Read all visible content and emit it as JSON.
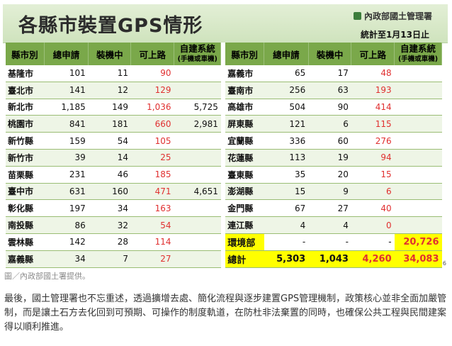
{
  "title": "各縣市裝置GPS情形",
  "agency": "內政部國土管理署",
  "stat_date": "統計至1月13日止",
  "headers": [
    "縣市別",
    "總申請",
    "裝機中",
    "可上路",
    "自建系統",
    "(手機或車機)"
  ],
  "left_rows": [
    {
      "county": "基隆市",
      "total": "101",
      "installing": "11",
      "ready": "90",
      "self": ""
    },
    {
      "county": "臺北市",
      "total": "141",
      "installing": "12",
      "ready": "129",
      "self": ""
    },
    {
      "county": "新北市",
      "total": "1,185",
      "installing": "149",
      "ready": "1,036",
      "self": "5,725"
    },
    {
      "county": "桃園市",
      "total": "841",
      "installing": "181",
      "ready": "660",
      "self": "2,981"
    },
    {
      "county": "新竹縣",
      "total": "159",
      "installing": "54",
      "ready": "105",
      "self": ""
    },
    {
      "county": "新竹市",
      "total": "39",
      "installing": "14",
      "ready": "25",
      "self": ""
    },
    {
      "county": "苗栗縣",
      "total": "231",
      "installing": "46",
      "ready": "185",
      "self": ""
    },
    {
      "county": "臺中市",
      "total": "631",
      "installing": "160",
      "ready": "471",
      "self": "4,651"
    },
    {
      "county": "彰化縣",
      "total": "197",
      "installing": "34",
      "ready": "163",
      "self": ""
    },
    {
      "county": "南投縣",
      "total": "86",
      "installing": "32",
      "ready": "54",
      "self": ""
    },
    {
      "county": "雲林縣",
      "total": "142",
      "installing": "28",
      "ready": "114",
      "self": ""
    },
    {
      "county": "嘉義縣",
      "total": "34",
      "installing": "7",
      "ready": "27",
      "self": ""
    }
  ],
  "right_rows": [
    {
      "county": "嘉義市",
      "total": "65",
      "installing": "17",
      "ready": "48",
      "self": ""
    },
    {
      "county": "臺南市",
      "total": "256",
      "installing": "63",
      "ready": "193",
      "self": ""
    },
    {
      "county": "高雄市",
      "total": "504",
      "installing": "90",
      "ready": "414",
      "self": ""
    },
    {
      "county": "屏東縣",
      "total": "121",
      "installing": "6",
      "ready": "115",
      "self": ""
    },
    {
      "county": "宜蘭縣",
      "total": "336",
      "installing": "60",
      "ready": "276",
      "self": ""
    },
    {
      "county": "花蓮縣",
      "total": "113",
      "installing": "19",
      "ready": "94",
      "self": ""
    },
    {
      "county": "臺東縣",
      "total": "35",
      "installing": "20",
      "ready": "15",
      "self": ""
    },
    {
      "county": "澎湖縣",
      "total": "15",
      "installing": "9",
      "ready": "6",
      "self": ""
    },
    {
      "county": "金門縣",
      "total": "67",
      "installing": "27",
      "ready": "40",
      "self": ""
    },
    {
      "county": "連江縣",
      "total": "4",
      "installing": "4",
      "ready": "0",
      "self": ""
    },
    {
      "county": "環境部",
      "total": "-",
      "installing": "-",
      "ready": "-",
      "self": "20,726"
    },
    {
      "county": "總計",
      "total": "5,303",
      "installing": "1,043",
      "ready": "4,260",
      "self": "34,083"
    }
  ],
  "page_number": "6",
  "caption": "圖／內政部國土署提供。",
  "paragraph": "最後，國土管理署也不忘重述，透過擴增去處、簡化流程與逐步建置GPS管理機制，政策核心並非全面加嚴管制，而是讓土石方去化回到可預期、可操作的制度軌道，在防杜非法棄置的同時，也確保公共工程與民間建案得以順利推進。",
  "colors": {
    "header_green": "#7aa84a",
    "band_green": "#d8e8c6",
    "red": "#e03030",
    "highlight": "#ffff00"
  }
}
